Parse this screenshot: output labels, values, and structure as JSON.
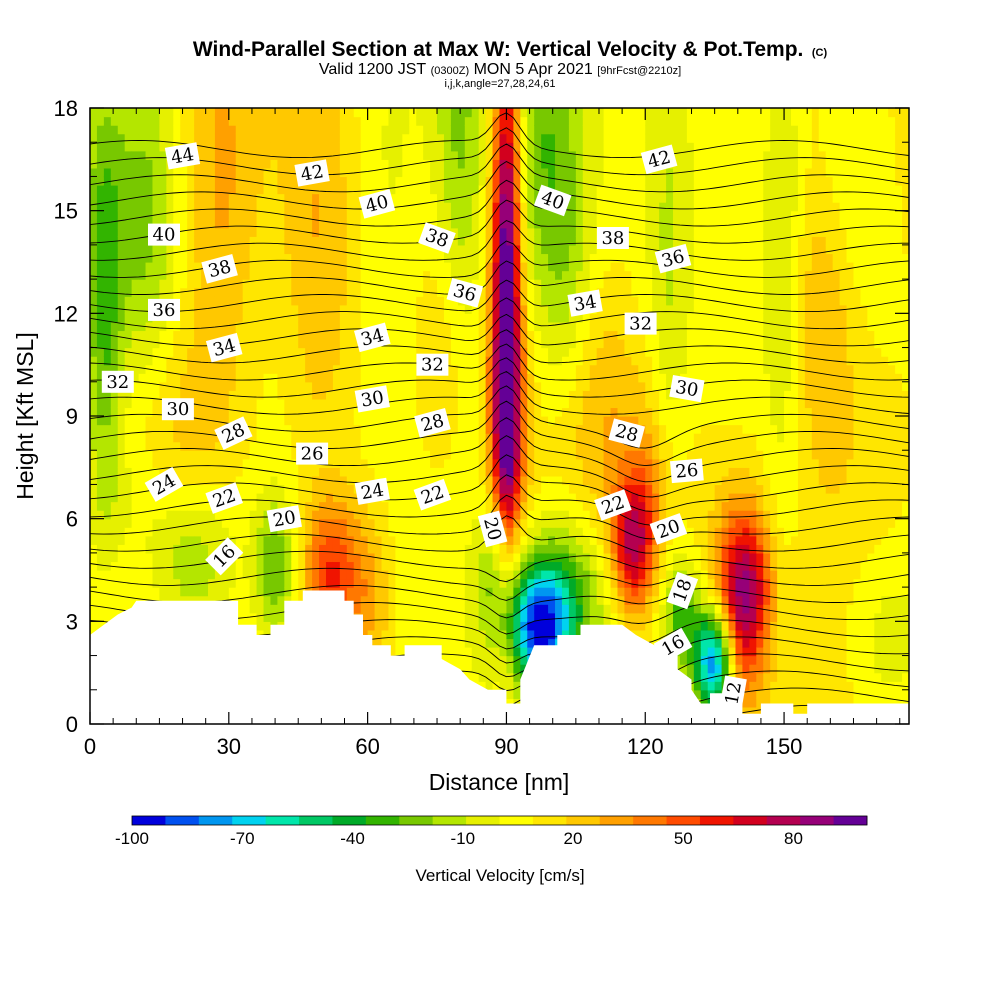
{
  "chart_data": {
    "type": "heatmap",
    "title": "Wind-Parallel Section at Max W: Vertical Velocity & Pot.Temp.",
    "title_tag": "(C)",
    "subtitle_parts": [
      "Valid 1200 JST",
      "(0300Z)",
      "MON 5 Apr 2021",
      "[9hrFcst@2210z]"
    ],
    "subtitle2": "i,j,k,angle=27,28,24,61",
    "xlabel": "Distance [nm]",
    "ylabel": "Height [Kft MSL]",
    "xlim": [
      0,
      177
    ],
    "ylim": [
      0,
      18
    ],
    "x_ticks": [
      "0",
      "30",
      "60",
      "90",
      "120",
      "150"
    ],
    "y_ticks": [
      "0",
      "3",
      "6",
      "9",
      "12",
      "15",
      "18"
    ],
    "colorbar": {
      "label": "Vertical Velocity [cm/s]",
      "tick_labels": [
        "-100",
        "-70",
        "-40",
        "-10",
        "20",
        "50",
        "80"
      ],
      "range": [
        -100,
        100
      ],
      "colors": [
        "#0000dc",
        "#0050f0",
        "#0096f0",
        "#00d2f0",
        "#00e6aa",
        "#00c864",
        "#00aa28",
        "#32b400",
        "#78c800",
        "#b4e600",
        "#e6f000",
        "#ffff00",
        "#ffe600",
        "#ffc800",
        "#ffa000",
        "#ff7800",
        "#ff4b00",
        "#f01400",
        "#d2001e",
        "#b40050",
        "#960078",
        "#640096"
      ]
    },
    "terrain_kft": [
      [
        0,
        2.6
      ],
      [
        3,
        2.9
      ],
      [
        6,
        3.2
      ],
      [
        9,
        3.4
      ],
      [
        10,
        3.6
      ],
      [
        32,
        3.6
      ],
      [
        32,
        2.9
      ],
      [
        36,
        2.9
      ],
      [
        36,
        2.6
      ],
      [
        39,
        2.6
      ],
      [
        39,
        2.9
      ],
      [
        42,
        2.9
      ],
      [
        42,
        3.6
      ],
      [
        46,
        3.6
      ],
      [
        46,
        3.9
      ],
      [
        55,
        3.9
      ],
      [
        55,
        3.6
      ],
      [
        57,
        3.6
      ],
      [
        57,
        3.2
      ],
      [
        59,
        3.2
      ],
      [
        59,
        2.6
      ],
      [
        61,
        2.6
      ],
      [
        61,
        2.3
      ],
      [
        65,
        2.3
      ],
      [
        65,
        2.0
      ],
      [
        68,
        2.0
      ],
      [
        68,
        2.3
      ],
      [
        76,
        2.3
      ],
      [
        76,
        1.9
      ],
      [
        80,
        1.6
      ],
      [
        82,
        1.3
      ],
      [
        86,
        1.0
      ],
      [
        90,
        1.0
      ],
      [
        90,
        0.6
      ],
      [
        93,
        0.6
      ],
      [
        93,
        1.3
      ],
      [
        96,
        2.3
      ],
      [
        101,
        2.3
      ],
      [
        101,
        2.6
      ],
      [
        106,
        2.6
      ],
      [
        106,
        2.9
      ],
      [
        115,
        2.9
      ],
      [
        118,
        2.6
      ],
      [
        122,
        2.3
      ],
      [
        127,
        2.3
      ],
      [
        127,
        1.6
      ],
      [
        130,
        1.3
      ],
      [
        130,
        1.0
      ],
      [
        132,
        0.6
      ],
      [
        134,
        0.6
      ],
      [
        134,
        0.9
      ],
      [
        141,
        0.9
      ],
      [
        141,
        0.3
      ],
      [
        145,
        0.3
      ],
      [
        145,
        0.6
      ],
      [
        152,
        0.6
      ],
      [
        152,
        0.3
      ],
      [
        155,
        0.3
      ],
      [
        155,
        0.6
      ],
      [
        177,
        0.6
      ]
    ],
    "w_features": [
      {
        "x": 90,
        "y": 13.0,
        "sx": 2.2,
        "sy": 5.5,
        "w": 95
      },
      {
        "x": 90.5,
        "y": 8.3,
        "sx": 3.0,
        "sy": 2.2,
        "w": 35
      },
      {
        "x": 88,
        "y": 4.5,
        "sx": 3.0,
        "sy": 1.5,
        "w": -30
      },
      {
        "x": 97,
        "y": 2.8,
        "sx": 4.5,
        "sy": 1.2,
        "w": -85
      },
      {
        "x": 103,
        "y": 3.8,
        "sx": 7,
        "sy": 1.6,
        "w": -40
      },
      {
        "x": 98,
        "y": 16.5,
        "sx": 5,
        "sy": 4,
        "w": -30
      },
      {
        "x": 80,
        "y": 16,
        "sx": 4,
        "sy": 5,
        "w": -30
      },
      {
        "x": 77,
        "y": 11,
        "sx": 4,
        "sy": 3,
        "w": 15
      },
      {
        "x": 135,
        "y": 1.8,
        "sx": 3,
        "sy": 1.1,
        "w": -100
      },
      {
        "x": 128,
        "y": 3.2,
        "sx": 3,
        "sy": 1.2,
        "w": -40
      },
      {
        "x": 140,
        "y": 3.5,
        "sx": 3.5,
        "sy": 2.0,
        "w": 60
      },
      {
        "x": 144,
        "y": 4.0,
        "sx": 3,
        "sy": 1.5,
        "w": 30
      },
      {
        "x": 117,
        "y": 5.2,
        "sx": 3,
        "sy": 1.3,
        "w": 55
      },
      {
        "x": 121,
        "y": 6.5,
        "sx": 4,
        "sy": 2.0,
        "w": 25
      },
      {
        "x": 125,
        "y": 11,
        "sx": 3,
        "sy": 7,
        "w": -15
      },
      {
        "x": 3,
        "y": 12,
        "sx": 3,
        "sy": 5,
        "w": -35
      },
      {
        "x": 12,
        "y": 15,
        "sx": 5,
        "sy": 4,
        "w": -25
      },
      {
        "x": 8,
        "y": 6.5,
        "sx": 6,
        "sy": 1.5,
        "w": -10
      },
      {
        "x": 20,
        "y": 8.5,
        "sx": 9,
        "sy": 2.5,
        "w": 18
      },
      {
        "x": 22,
        "y": 4.8,
        "sx": 7,
        "sy": 1.8,
        "w": -30
      },
      {
        "x": 40,
        "y": 4.5,
        "sx": 3,
        "sy": 1.5,
        "w": -35
      },
      {
        "x": 52,
        "y": 4.5,
        "sx": 4,
        "sy": 1.5,
        "w": 45
      },
      {
        "x": 60,
        "y": 3.8,
        "sx": 4,
        "sy": 2,
        "w": 25
      },
      {
        "x": 64,
        "y": 16,
        "sx": 8,
        "sy": 4,
        "w": -15
      },
      {
        "x": 50,
        "y": 13,
        "sx": 6,
        "sy": 5,
        "w": 20
      },
      {
        "x": 28,
        "y": 15,
        "sx": 6,
        "sy": 4,
        "w": 22
      },
      {
        "x": 158,
        "y": 12,
        "sx": 6,
        "sy": 3,
        "w": 25
      },
      {
        "x": 165,
        "y": 16,
        "sx": 6,
        "sy": 3,
        "w": -15
      },
      {
        "x": 150,
        "y": 14,
        "sx": 3,
        "sy": 6,
        "w": -18
      },
      {
        "x": 168,
        "y": 7,
        "sx": 10,
        "sy": 3,
        "w": 12
      },
      {
        "x": 172,
        "y": 2.5,
        "sx": 6,
        "sy": 2,
        "w": -15
      },
      {
        "x": 110,
        "y": 9,
        "sx": 6,
        "sy": 3,
        "w": 15
      },
      {
        "x": 104,
        "y": 13,
        "sx": 4,
        "sy": 3,
        "w": -18
      }
    ],
    "isentropes_c": [
      12,
      13,
      14,
      15,
      16,
      17,
      18,
      19,
      20,
      21,
      22,
      23,
      24,
      25,
      26,
      27,
      28,
      29,
      30,
      31,
      32,
      33,
      34,
      35,
      36,
      37,
      38,
      39,
      40,
      41,
      42,
      43,
      44,
      45
    ],
    "contour_labels": [
      {
        "text": "44",
        "x": 20,
        "y": 16.6,
        "rot": -10
      },
      {
        "text": "42",
        "x": 48,
        "y": 16.1,
        "rot": -10
      },
      {
        "text": "40",
        "x": 62,
        "y": 15.2,
        "rot": -15
      },
      {
        "text": "40",
        "x": 16,
        "y": 14.3,
        "rot": 0
      },
      {
        "text": "38",
        "x": 75,
        "y": 14.2,
        "rot": 20
      },
      {
        "text": "40",
        "x": 100,
        "y": 15.3,
        "rot": 20
      },
      {
        "text": "42",
        "x": 123,
        "y": 16.5,
        "rot": -15
      },
      {
        "text": "38",
        "x": 113,
        "y": 14.2,
        "rot": 0
      },
      {
        "text": "36",
        "x": 126,
        "y": 13.6,
        "rot": -15
      },
      {
        "text": "38",
        "x": 28,
        "y": 13.3,
        "rot": -15
      },
      {
        "text": "36",
        "x": 81,
        "y": 12.6,
        "rot": 15
      },
      {
        "text": "34",
        "x": 107,
        "y": 12.3,
        "rot": -10
      },
      {
        "text": "36",
        "x": 16,
        "y": 12.1,
        "rot": 0
      },
      {
        "text": "32",
        "x": 119,
        "y": 11.7,
        "rot": 0
      },
      {
        "text": "34",
        "x": 61,
        "y": 11.3,
        "rot": -15
      },
      {
        "text": "34",
        "x": 29,
        "y": 11.0,
        "rot": -15
      },
      {
        "text": "32",
        "x": 74,
        "y": 10.5,
        "rot": 0
      },
      {
        "text": "32",
        "x": 6,
        "y": 10.0,
        "rot": 0
      },
      {
        "text": "30",
        "x": 129,
        "y": 9.8,
        "rot": 10
      },
      {
        "text": "30",
        "x": 61,
        "y": 9.5,
        "rot": -10
      },
      {
        "text": "30",
        "x": 19,
        "y": 9.2,
        "rot": 0
      },
      {
        "text": "28",
        "x": 74,
        "y": 8.8,
        "rot": -15
      },
      {
        "text": "28",
        "x": 31,
        "y": 8.5,
        "rot": -25
      },
      {
        "text": "28",
        "x": 116,
        "y": 8.5,
        "rot": 15
      },
      {
        "text": "26",
        "x": 48,
        "y": 7.9,
        "rot": 0
      },
      {
        "text": "26",
        "x": 129,
        "y": 7.4,
        "rot": -5
      },
      {
        "text": "24",
        "x": 16,
        "y": 7.0,
        "rot": -30
      },
      {
        "text": "24",
        "x": 61,
        "y": 6.8,
        "rot": -10
      },
      {
        "text": "22",
        "x": 74,
        "y": 6.7,
        "rot": -20
      },
      {
        "text": "22",
        "x": 29,
        "y": 6.6,
        "rot": -20
      },
      {
        "text": "22",
        "x": 113,
        "y": 6.4,
        "rot": -20
      },
      {
        "text": "20",
        "x": 42,
        "y": 6.0,
        "rot": -10
      },
      {
        "text": "20",
        "x": 87,
        "y": 5.7,
        "rot": 75
      },
      {
        "text": "20",
        "x": 125,
        "y": 5.7,
        "rot": -20
      },
      {
        "text": "16",
        "x": 29,
        "y": 4.9,
        "rot": -45
      },
      {
        "text": "18",
        "x": 128,
        "y": 3.9,
        "rot": -70
      },
      {
        "text": "16",
        "x": 126,
        "y": 2.3,
        "rot": -30
      },
      {
        "text": "12",
        "x": 139,
        "y": 0.9,
        "rot": -80
      }
    ]
  }
}
